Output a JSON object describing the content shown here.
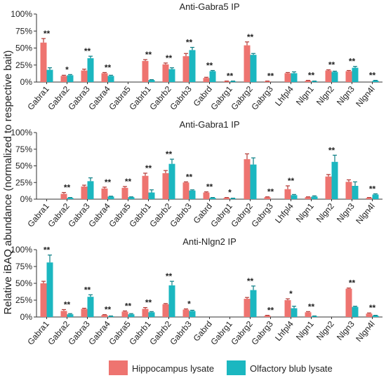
{
  "y_axis_label": "Relative iBAQ abundance (normalized to respective bait)",
  "legend": {
    "items": [
      {
        "label": "Hippocampus lysate",
        "color": "#ee7470"
      },
      {
        "label": "Olfactory blub lysate",
        "color": "#1bb7c0"
      }
    ]
  },
  "chart_data": [
    {
      "type": "bar",
      "title": "Anti-Gabra5 IP",
      "ylim": [
        0,
        100
      ],
      "yticks": [
        "0%",
        "25%",
        "50%",
        "75%",
        "100%"
      ],
      "categories": [
        "Gabra1",
        "Gabra2",
        "Gabra3",
        "Gabra4",
        "Gabra5",
        "Gabrb1",
        "Gabrb2",
        "Gabrb3",
        "Gabrd",
        "Gabrg1",
        "Gabrg2",
        "Gabrg3",
        "Lhfpl4",
        "Nlgn1",
        "Nlgn2",
        "Nlgn3",
        "Nlgn4l"
      ],
      "series": [
        {
          "name": "Hippocampus lysate",
          "values": [
            58,
            9,
            17,
            13,
            0,
            31,
            26,
            38,
            6,
            1,
            54,
            1,
            13,
            2,
            17,
            16,
            0
          ],
          "errors": [
            6,
            1,
            2,
            1,
            0,
            2,
            2,
            4,
            1,
            0.5,
            5,
            0.5,
            1,
            0.5,
            1,
            1,
            0
          ]
        },
        {
          "name": "Olfactory blub lysate",
          "values": [
            18,
            10,
            35,
            9,
            0,
            3,
            19,
            47,
            16,
            1,
            40,
            0,
            13,
            1,
            15,
            21,
            2
          ],
          "errors": [
            3,
            1,
            3,
            1,
            0,
            0.5,
            2,
            4,
            1,
            0.5,
            2,
            0,
            2,
            0.5,
            1,
            2,
            0.5
          ]
        }
      ],
      "significance": [
        "**",
        "*",
        "**",
        "**",
        "",
        "**",
        "**",
        "**",
        "**",
        "**",
        "**",
        "**",
        "",
        "**",
        "**",
        "**",
        "**"
      ]
    },
    {
      "type": "bar",
      "title": "Anti-Gabra1 IP",
      "ylim": [
        0,
        100
      ],
      "yticks": [
        "0%",
        "25%",
        "50%",
        "75%",
        "100%"
      ],
      "categories": [
        "Gabra1",
        "Gabra2",
        "Gabra3",
        "Gabra4",
        "Gabra5",
        "Gabrb1",
        "Gabrb2",
        "Gabrb3",
        "Gabrd",
        "Gabrg1",
        "Gabrg2",
        "Gabrg3",
        "Lhfpl4",
        "Nlgn1",
        "Nlgn2",
        "Nlgn3",
        "Nlgn4l"
      ],
      "series": [
        {
          "name": "Hippocampus lysate",
          "values": [
            0,
            8,
            19,
            16,
            17,
            35,
            39,
            25,
            10,
            2,
            60,
            3,
            15,
            3,
            34,
            26,
            2
          ],
          "errors": [
            0,
            2,
            2,
            2,
            2,
            4,
            4,
            1,
            1,
            0.5,
            8,
            0.5,
            5,
            0.5,
            3,
            3,
            0.5
          ]
        },
        {
          "name": "Olfactory blub lysate",
          "values": [
            0,
            2,
            27,
            4,
            3,
            10,
            53,
            13,
            2,
            1,
            52,
            0,
            6,
            4,
            56,
            20,
            7
          ],
          "errors": [
            0,
            0.5,
            5,
            0.5,
            0.5,
            4,
            7,
            1,
            0.5,
            0.5,
            10,
            0,
            1,
            1,
            10,
            6,
            1
          ]
        }
      ],
      "significance": [
        "",
        "**",
        "",
        "**",
        "**",
        "**",
        "**",
        "**",
        "**",
        "*",
        "",
        "**",
        "**",
        "",
        "**",
        "",
        "**"
      ]
    },
    {
      "type": "bar",
      "title": "Anti-Nlgn2 IP",
      "ylim": [
        0,
        100
      ],
      "yticks": [
        "0%",
        "25%",
        "50%",
        "75%",
        "100%"
      ],
      "categories": [
        "Gabra1",
        "Gabra2",
        "Gabra3",
        "Gabra4",
        "Gabra5",
        "Gabrb1",
        "Gabrb2",
        "Gabrb3",
        "Gabrd",
        "Gabrg1",
        "Gabrg2",
        "Gabrg3",
        "Lhfpl4",
        "Nlgn1",
        "Nlgn2",
        "Nlgn3",
        "Nlgn4l"
      ],
      "series": [
        {
          "name": "Hippocampus lysate",
          "values": [
            50,
            9,
            12,
            3,
            8,
            12,
            19,
            11,
            0,
            0,
            27,
            2,
            25,
            7,
            0,
            42,
            5
          ],
          "errors": [
            3,
            2,
            1,
            0.5,
            1,
            2,
            1,
            1,
            0,
            0,
            2,
            0.5,
            2,
            1,
            0,
            1,
            1
          ]
        },
        {
          "name": "Olfactory blub lysate",
          "values": [
            81,
            4,
            30,
            1,
            4,
            7,
            47,
            9,
            0,
            0,
            40,
            0,
            13,
            1,
            0,
            15,
            2
          ],
          "errors": [
            11,
            1,
            3,
            0.5,
            1,
            1,
            6,
            1,
            0,
            0,
            6,
            0,
            3,
            0.5,
            0,
            1,
            0.5
          ]
        }
      ],
      "significance": [
        "**",
        "**",
        "**",
        "**",
        "**",
        "**",
        "**",
        "*",
        "",
        "",
        "**",
        "**",
        "*",
        "**",
        "",
        "**",
        "**"
      ]
    }
  ]
}
